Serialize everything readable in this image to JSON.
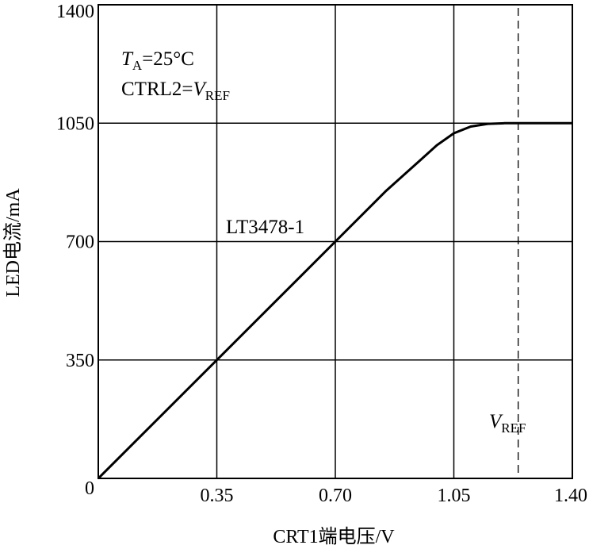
{
  "chart_data": {
    "type": "line",
    "xlabel": "CRT1端电压/V",
    "ylabel": "LED电流/mA",
    "xlim": [
      0,
      1.4
    ],
    "ylim": [
      0,
      1400
    ],
    "x_ticks": [
      "0",
      "0.35",
      "0.70",
      "1.05",
      "1.40"
    ],
    "y_ticks": [
      "0",
      "350",
      "700",
      "1050",
      "1400"
    ],
    "grid": true,
    "series": [
      {
        "name": "LT3478-1",
        "x": [
          0,
          0.35,
          0.7,
          0.85,
          0.95,
          1.0,
          1.05,
          1.1,
          1.15,
          1.2,
          1.24,
          1.4
        ],
        "y": [
          0,
          350,
          700,
          850,
          940,
          985,
          1020,
          1040,
          1048,
          1050,
          1050,
          1050
        ]
      }
    ],
    "vref_line": {
      "x": 1.24,
      "label_main": "V",
      "label_sub": "REF"
    },
    "annotations": {
      "series_label": "LT3478-1",
      "ta_main": "T",
      "ta_sub": "A",
      "ta_value": "=25°C",
      "ctrl_prefix": "CTRL2=",
      "ctrl_main": "V",
      "ctrl_sub": "REF"
    }
  }
}
